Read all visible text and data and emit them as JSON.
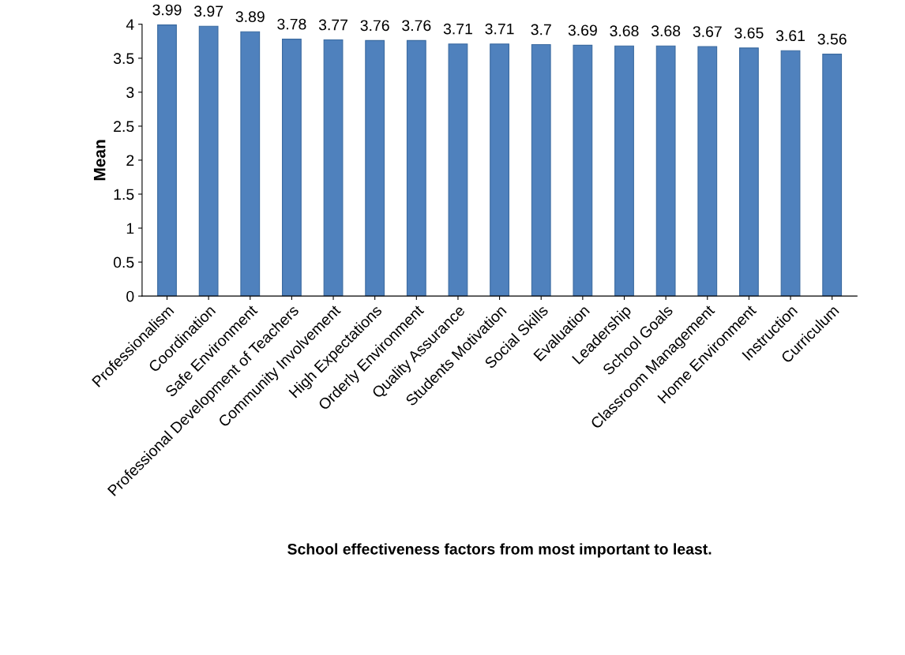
{
  "chart_data": {
    "type": "bar",
    "xlabel": "School effectiveness factors from most important to least.",
    "ylabel": "Mean",
    "categories": [
      "Professionalism",
      "Coordination",
      "Safe Environment",
      "Professional Development of Teachers",
      "Community Involvement",
      "High Expectations",
      "Orderly Environment",
      "Quality Assurance",
      "Students Motivation",
      "Social Skills",
      "Evaluation",
      "Leadership",
      "School Goals",
      "Classroom Management",
      "Home Environment",
      "Instruction",
      "Curriculum"
    ],
    "values": [
      3.99,
      3.97,
      3.89,
      3.78,
      3.77,
      3.76,
      3.76,
      3.71,
      3.71,
      3.7,
      3.69,
      3.68,
      3.68,
      3.67,
      3.65,
      3.61,
      3.56
    ],
    "color": "#4f81bd",
    "ylim": [
      0,
      4
    ],
    "yticks": [
      0,
      0.5,
      1,
      1.5,
      2,
      2.5,
      3,
      3.5,
      4
    ],
    "data_labels": true,
    "grid": false,
    "legend": false
  }
}
